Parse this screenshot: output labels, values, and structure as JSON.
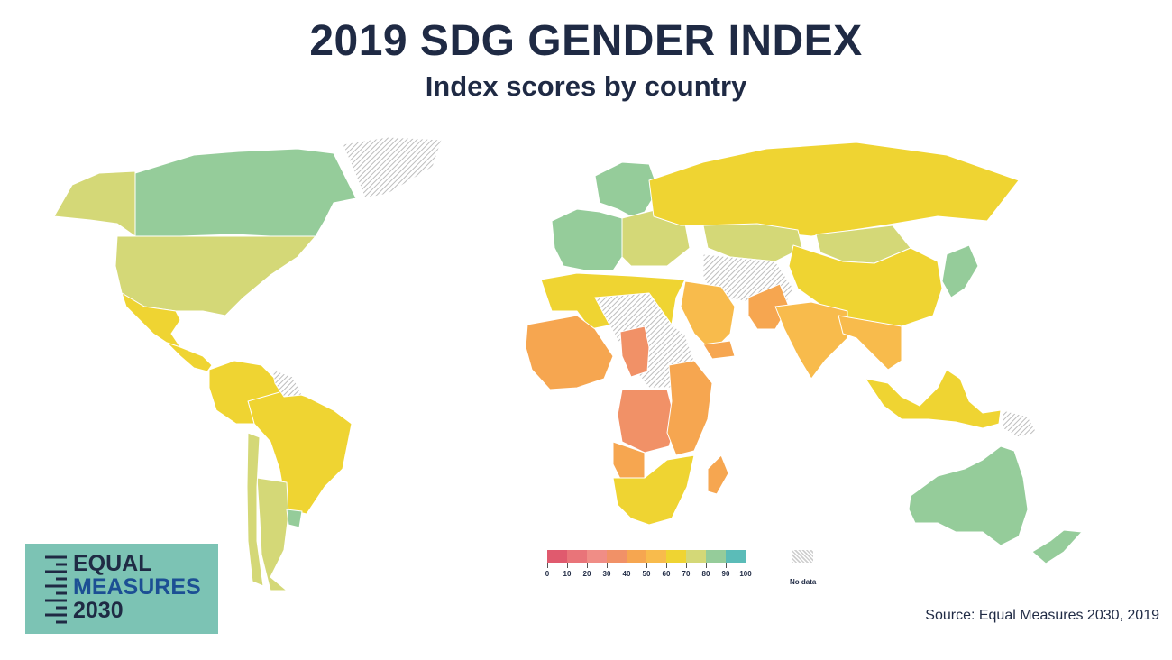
{
  "header": {
    "title": "2019 SDG GENDER INDEX",
    "subtitle": "Index scores by country"
  },
  "colors": {
    "band_0_10": "#e05a6e",
    "band_10_20": "#e97479",
    "band_20_30": "#f08d86",
    "band_30_40": "#f19167",
    "band_40_50": "#f6a650",
    "band_50_60": "#f8bb4c",
    "band_60_70": "#efd432",
    "band_70_80": "#d4d877",
    "band_80_90": "#95cc9a",
    "band_90_100": "#5bbcb8",
    "no_data": "#cfcfcf",
    "title_text": "#1f2a44"
  },
  "legend": {
    "bands": [
      "band_0_10",
      "band_10_20",
      "band_20_30",
      "band_30_40",
      "band_40_50",
      "band_50_60",
      "band_60_70",
      "band_70_80",
      "band_80_90",
      "band_90_100"
    ],
    "labels": [
      "0",
      "10",
      "20",
      "30",
      "40",
      "50",
      "60",
      "70",
      "80",
      "90",
      "100"
    ],
    "no_data_label": "No data"
  },
  "regions": [
    {
      "name": "Canada",
      "band": "band_80_90"
    },
    {
      "name": "Alaska (United States)",
      "band": "band_70_80"
    },
    {
      "name": "United States",
      "band": "band_70_80"
    },
    {
      "name": "Greenland",
      "band": "no_data"
    },
    {
      "name": "Mexico",
      "band": "band_60_70"
    },
    {
      "name": "Central America",
      "band": "band_60_70"
    },
    {
      "name": "Brazil",
      "band": "band_60_70"
    },
    {
      "name": "Northern South America",
      "band": "band_60_70"
    },
    {
      "name": "Guianas",
      "band": "no_data"
    },
    {
      "name": "Argentina",
      "band": "band_70_80"
    },
    {
      "name": "Chile",
      "band": "band_70_80"
    },
    {
      "name": "Uruguay",
      "band": "band_80_90"
    },
    {
      "name": "Nordic countries",
      "band": "band_80_90"
    },
    {
      "name": "Western Europe",
      "band": "band_80_90"
    },
    {
      "name": "Eastern Europe",
      "band": "band_70_80"
    },
    {
      "name": "Russia",
      "band": "band_60_70"
    },
    {
      "name": "Kazakhstan",
      "band": "band_70_80"
    },
    {
      "name": "Mongolia",
      "band": "band_70_80"
    },
    {
      "name": "China",
      "band": "band_60_70"
    },
    {
      "name": "Japan",
      "band": "band_80_90"
    },
    {
      "name": "Middle East no data",
      "band": "no_data"
    },
    {
      "name": "Pakistan",
      "band": "band_40_50"
    },
    {
      "name": "India",
      "band": "band_50_60"
    },
    {
      "name": "Saudi Arabia",
      "band": "band_50_60"
    },
    {
      "name": "Yemen",
      "band": "band_40_50"
    },
    {
      "name": "North Africa",
      "band": "band_60_70"
    },
    {
      "name": "Sahara no data",
      "band": "no_data"
    },
    {
      "name": "West Africa",
      "band": "band_40_50"
    },
    {
      "name": "Chad",
      "band": "band_30_40"
    },
    {
      "name": "Central Africa",
      "band": "band_30_40"
    },
    {
      "name": "East Africa",
      "band": "band_40_50"
    },
    {
      "name": "Angola",
      "band": "band_40_50"
    },
    {
      "name": "Southern Africa",
      "band": "band_60_70"
    },
    {
      "name": "Madagascar",
      "band": "band_40_50"
    },
    {
      "name": "Southeast Asia",
      "band": "band_50_60"
    },
    {
      "name": "Indonesia",
      "band": "band_60_70"
    },
    {
      "name": "Papua New Guinea",
      "band": "no_data"
    },
    {
      "name": "Australia",
      "band": "band_80_90"
    },
    {
      "name": "New Zealand",
      "band": "band_80_90"
    }
  ],
  "logo": {
    "line1": "EQUAL",
    "line2": "MEASURES",
    "line3": "2030"
  },
  "source": "Source: Equal Measures 2030, 2019"
}
